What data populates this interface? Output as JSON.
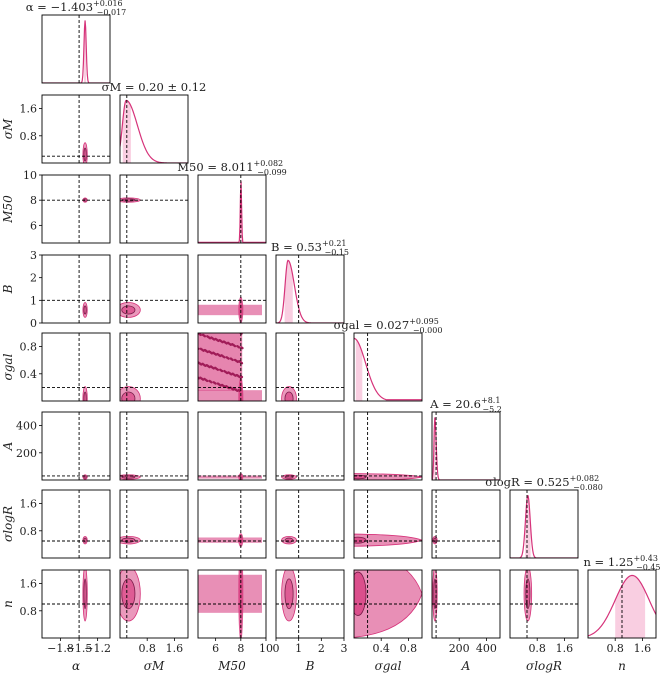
{
  "chart_data": {
    "type": "corner",
    "title": "",
    "colors": {
      "accent": "#d6337a",
      "light": "#f4a5c8",
      "truth_line": "#000000",
      "frame": "#000000"
    },
    "truth_line_style": "dashed",
    "parameters": [
      {
        "key": "alpha",
        "label": "α",
        "title": "α = −1.403 +0.016 −0.017",
        "title_parts": {
          "main": "α = −1.403",
          "sup": "+0.016",
          "sub": "−0.017"
        },
        "median": -1.403,
        "err_plus": 0.016,
        "err_minus": 0.017,
        "truth": -1.5,
        "range": [
          -2.1,
          -1.0
        ],
        "ticks": [
          -1.8,
          -1.5,
          -1.2
        ],
        "tick_labels": [
          "−1.8",
          "−1.5",
          "−1.2"
        ]
      },
      {
        "key": "sigma_M",
        "label": "σM",
        "title": "σM = 0.20 ± 0.12",
        "title_parts": {
          "main": "σM = 0.20 ± 0.12",
          "sup": "",
          "sub": ""
        },
        "median": 0.2,
        "err_plus": 0.12,
        "err_minus": 0.12,
        "truth": 0.2,
        "range": [
          0.0,
          2.0
        ],
        "ticks": [
          0.8,
          1.6
        ],
        "tick_labels": [
          "0.8",
          "1.6"
        ]
      },
      {
        "key": "M50",
        "label": "M50",
        "title": "M50 = 8.011 +0.082 −0.099",
        "title_parts": {
          "main": "M50 = 8.011",
          "sup": "+0.082",
          "sub": "−0.099"
        },
        "median": 8.011,
        "err_plus": 0.082,
        "err_minus": 0.099,
        "truth": 8.0,
        "range": [
          4.6,
          10.0
        ],
        "ticks": [
          6,
          8,
          10
        ],
        "tick_labels": [
          "6",
          "8",
          "10"
        ]
      },
      {
        "key": "B",
        "label": "B",
        "title": "B = 0.53 +0.21 −0.15",
        "title_parts": {
          "main": "B = 0.53",
          "sup": "+0.21",
          "sub": "−0.15"
        },
        "median": 0.53,
        "err_plus": 0.21,
        "err_minus": 0.15,
        "truth": 1.0,
        "range": [
          0.0,
          3.0
        ],
        "ticks": [
          0,
          1,
          2,
          3
        ],
        "tick_labels": [
          "0",
          "1",
          "2",
          "3"
        ]
      },
      {
        "key": "sigma_gal",
        "label": "σgal",
        "title": "σgal = 0.027 +0.095 −0.000",
        "title_parts": {
          "main": "σgal = 0.027",
          "sup": "+0.095",
          "sub": "−0.000"
        },
        "median": 0.027,
        "err_plus": 0.095,
        "err_minus": 0.0,
        "truth": 0.2,
        "range": [
          0.0,
          1.0
        ],
        "ticks": [
          0.4,
          0.8
        ],
        "tick_labels": [
          "0.4",
          "0.8"
        ]
      },
      {
        "key": "A",
        "label": "A",
        "title": "A = 20.6 +8.1 −5.2",
        "title_parts": {
          "main": "A = 20.6",
          "sup": "+8.1",
          "sub": "−5.2"
        },
        "median": 20.6,
        "err_plus": 8.1,
        "err_minus": 5.2,
        "truth": 30,
        "range": [
          0,
          500
        ],
        "ticks": [
          200,
          400
        ],
        "tick_labels": [
          "200",
          "400"
        ]
      },
      {
        "key": "sigma_logR",
        "label": "σlogR",
        "title": "σlogR = 0.525 +0.082 −0.080",
        "title_parts": {
          "main": "σlogR = 0.525",
          "sup": "+0.082",
          "sub": "−0.080"
        },
        "median": 0.525,
        "err_plus": 0.082,
        "err_minus": 0.08,
        "truth": 0.5,
        "range": [
          0.0,
          2.0
        ],
        "ticks": [
          0.8,
          1.6
        ],
        "tick_labels": [
          "0.8",
          "1.6"
        ]
      },
      {
        "key": "n",
        "label": "n",
        "title": "n = 1.25 +0.43 −0.45",
        "title_parts": {
          "main": "n = 1.25",
          "sup": "+0.43",
          "sub": "−0.45"
        },
        "median": 1.25,
        "err_plus": 0.43,
        "err_minus": 0.45,
        "truth": 1.0,
        "range": [
          0.0,
          2.0
        ],
        "ticks": [
          0.8,
          1.6
        ],
        "tick_labels": [
          "0.8",
          "1.6"
        ]
      }
    ]
  }
}
